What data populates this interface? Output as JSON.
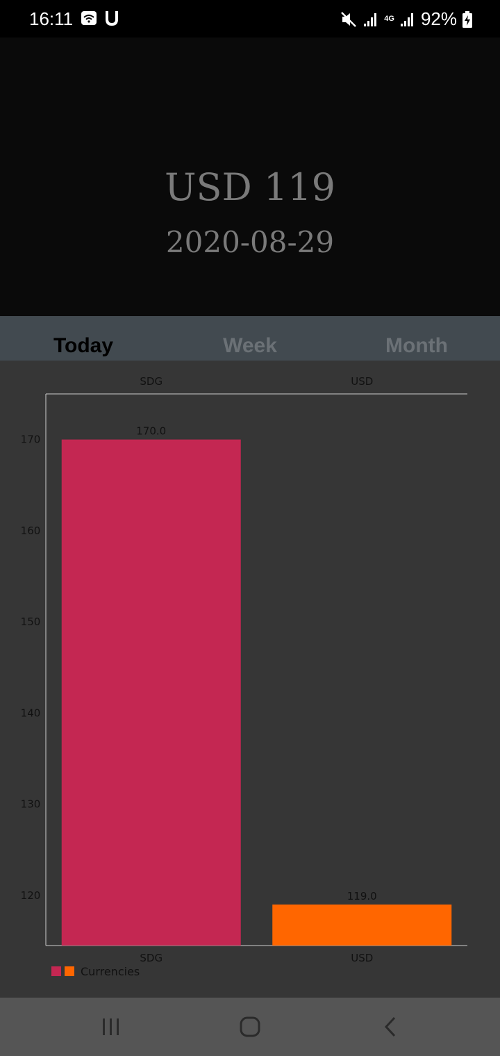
{
  "status_bar": {
    "time": "16:11",
    "battery": "92%",
    "network": "4G"
  },
  "header": {
    "amount": "USD 119",
    "date": "2020-08-29"
  },
  "tabs": [
    {
      "label": "Today",
      "active": true
    },
    {
      "label": "Week",
      "active": false
    },
    {
      "label": "Month",
      "active": false
    }
  ],
  "chart_data": {
    "type": "bar",
    "categories": [
      "SDG",
      "USD"
    ],
    "values": [
      170.0,
      119.0
    ],
    "value_labels": [
      "170.0",
      "119.0"
    ],
    "colors": [
      "#c42752",
      "#ff6600"
    ],
    "ylim": [
      114.5,
      175
    ],
    "yticks": [
      120,
      130,
      140,
      150,
      160,
      170
    ],
    "legend": {
      "label": "Currencies",
      "placement": "bottom-left"
    },
    "grid": false
  }
}
